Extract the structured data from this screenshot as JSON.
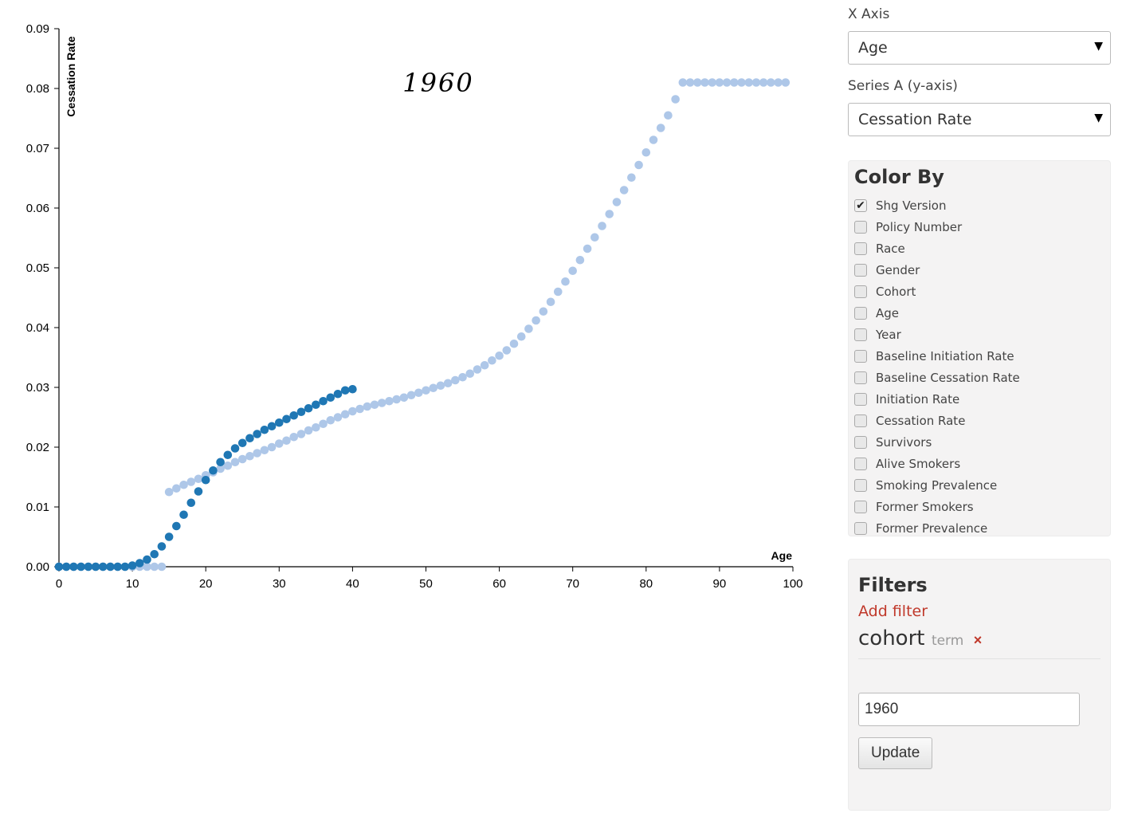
{
  "controls": {
    "x_axis_label": "X Axis",
    "x_axis_value": "Age",
    "series_a_label": "Series A (y-axis)",
    "series_a_value": "Cessation Rate",
    "caret": "▼"
  },
  "color_by": {
    "title": "Color By",
    "checkmark": "✔",
    "items": [
      {
        "label": "Shg Version",
        "checked": true
      },
      {
        "label": "Policy Number",
        "checked": false
      },
      {
        "label": "Race",
        "checked": false
      },
      {
        "label": "Gender",
        "checked": false
      },
      {
        "label": "Cohort",
        "checked": false
      },
      {
        "label": "Age",
        "checked": false
      },
      {
        "label": "Year",
        "checked": false
      },
      {
        "label": "Baseline Initiation Rate",
        "checked": false
      },
      {
        "label": "Baseline Cessation Rate",
        "checked": false
      },
      {
        "label": "Initiation Rate",
        "checked": false
      },
      {
        "label": "Cessation Rate",
        "checked": false
      },
      {
        "label": "Survivors",
        "checked": false
      },
      {
        "label": "Alive Smokers",
        "checked": false
      },
      {
        "label": "Smoking Prevalence",
        "checked": false
      },
      {
        "label": "Former Smokers",
        "checked": false
      },
      {
        "label": "Former Prevalence",
        "checked": false
      }
    ]
  },
  "filters": {
    "title": "Filters",
    "add_filter": "Add filter",
    "filter_name": "cohort",
    "filter_type": "term",
    "remove_symbol": "×",
    "input_value": "1960",
    "update_label": "Update"
  },
  "chart_data": {
    "type": "scatter",
    "overlay_title": "1960",
    "xlabel": "Age",
    "ylabel": "Cessation Rate",
    "xlim": [
      0,
      100
    ],
    "ylim": [
      0,
      0.09
    ],
    "x_ticks": [
      "0",
      "10",
      "20",
      "30",
      "40",
      "50",
      "60",
      "70",
      "80",
      "90",
      "100"
    ],
    "y_ticks": [
      "0.00",
      "0.01",
      "0.02",
      "0.03",
      "0.04",
      "0.05",
      "0.06",
      "0.07",
      "0.08",
      "0.09"
    ],
    "grid": false,
    "series": [
      {
        "color": "#aec7e8",
        "points": [
          [
            0,
            0
          ],
          [
            1,
            0
          ],
          [
            2,
            0
          ],
          [
            3,
            0
          ],
          [
            4,
            0
          ],
          [
            5,
            0
          ],
          [
            6,
            0
          ],
          [
            7,
            0
          ],
          [
            8,
            0
          ],
          [
            9,
            0
          ],
          [
            10,
            0
          ],
          [
            11,
            0
          ],
          [
            12,
            0
          ],
          [
            13,
            0
          ],
          [
            14,
            0
          ],
          [
            15,
            0.0125
          ],
          [
            16,
            0.0131
          ],
          [
            17,
            0.0137
          ],
          [
            18,
            0.0142
          ],
          [
            19,
            0.0147
          ],
          [
            20,
            0.0153
          ],
          [
            21,
            0.0158
          ],
          [
            22,
            0.0164
          ],
          [
            23,
            0.0169
          ],
          [
            24,
            0.0175
          ],
          [
            25,
            0.018
          ],
          [
            26,
            0.0185
          ],
          [
            27,
            0.019
          ],
          [
            28,
            0.0195
          ],
          [
            29,
            0.02
          ],
          [
            30,
            0.0206
          ],
          [
            31,
            0.0211
          ],
          [
            32,
            0.0217
          ],
          [
            33,
            0.0222
          ],
          [
            34,
            0.0228
          ],
          [
            35,
            0.0233
          ],
          [
            36,
            0.0239
          ],
          [
            37,
            0.0245
          ],
          [
            38,
            0.025
          ],
          [
            39,
            0.0255
          ],
          [
            40,
            0.026
          ],
          [
            41,
            0.0264
          ],
          [
            42,
            0.0268
          ],
          [
            43,
            0.0271
          ],
          [
            44,
            0.0274
          ],
          [
            45,
            0.0277
          ],
          [
            46,
            0.028
          ],
          [
            47,
            0.0283
          ],
          [
            48,
            0.0287
          ],
          [
            49,
            0.0291
          ],
          [
            50,
            0.0295
          ],
          [
            51,
            0.0299
          ],
          [
            52,
            0.0303
          ],
          [
            53,
            0.0307
          ],
          [
            54,
            0.0312
          ],
          [
            55,
            0.0317
          ],
          [
            56,
            0.0323
          ],
          [
            57,
            0.033
          ],
          [
            58,
            0.0337
          ],
          [
            59,
            0.0345
          ],
          [
            60,
            0.0353
          ],
          [
            61,
            0.0362
          ],
          [
            62,
            0.0373
          ],
          [
            63,
            0.0385
          ],
          [
            64,
            0.0398
          ],
          [
            65,
            0.0412
          ],
          [
            66,
            0.0427
          ],
          [
            67,
            0.0443
          ],
          [
            68,
            0.046
          ],
          [
            69,
            0.0477
          ],
          [
            70,
            0.0495
          ],
          [
            71,
            0.0513
          ],
          [
            72,
            0.0532
          ],
          [
            73,
            0.0551
          ],
          [
            74,
            0.057
          ],
          [
            75,
            0.059
          ],
          [
            76,
            0.061
          ],
          [
            77,
            0.063
          ],
          [
            78,
            0.0651
          ],
          [
            79,
            0.0672
          ],
          [
            80,
            0.0693
          ],
          [
            81,
            0.0714
          ],
          [
            82,
            0.0734
          ],
          [
            83,
            0.0755
          ],
          [
            84,
            0.0782
          ],
          [
            85,
            0.081
          ],
          [
            86,
            0.081
          ],
          [
            87,
            0.081
          ],
          [
            88,
            0.081
          ],
          [
            89,
            0.081
          ],
          [
            90,
            0.081
          ],
          [
            91,
            0.081
          ],
          [
            92,
            0.081
          ],
          [
            93,
            0.081
          ],
          [
            94,
            0.081
          ],
          [
            95,
            0.081
          ],
          [
            96,
            0.081
          ],
          [
            97,
            0.081
          ],
          [
            98,
            0.081
          ],
          [
            99,
            0.081
          ]
        ]
      },
      {
        "color": "#1f77b4",
        "points": [
          [
            0,
            0
          ],
          [
            1,
            0
          ],
          [
            2,
            0
          ],
          [
            3,
            0
          ],
          [
            4,
            0
          ],
          [
            5,
            0
          ],
          [
            6,
            0
          ],
          [
            7,
            0
          ],
          [
            8,
            0
          ],
          [
            9,
            0
          ],
          [
            10,
            0.0002
          ],
          [
            11,
            0.0006
          ],
          [
            12,
            0.0012
          ],
          [
            13,
            0.0021
          ],
          [
            14,
            0.0034
          ],
          [
            15,
            0.005
          ],
          [
            16,
            0.0068
          ],
          [
            17,
            0.0087
          ],
          [
            18,
            0.0107
          ],
          [
            19,
            0.0126
          ],
          [
            20,
            0.0145
          ],
          [
            21,
            0.0161
          ],
          [
            22,
            0.0175
          ],
          [
            23,
            0.0187
          ],
          [
            24,
            0.0198
          ],
          [
            25,
            0.0207
          ],
          [
            26,
            0.0215
          ],
          [
            27,
            0.0222
          ],
          [
            28,
            0.0229
          ],
          [
            29,
            0.0235
          ],
          [
            30,
            0.0241
          ],
          [
            31,
            0.0247
          ],
          [
            32,
            0.0253
          ],
          [
            33,
            0.0259
          ],
          [
            34,
            0.0265
          ],
          [
            35,
            0.0271
          ],
          [
            36,
            0.0277
          ],
          [
            37,
            0.0283
          ],
          [
            38,
            0.0289
          ],
          [
            39,
            0.0295
          ],
          [
            40,
            0.0297
          ]
        ]
      }
    ]
  }
}
